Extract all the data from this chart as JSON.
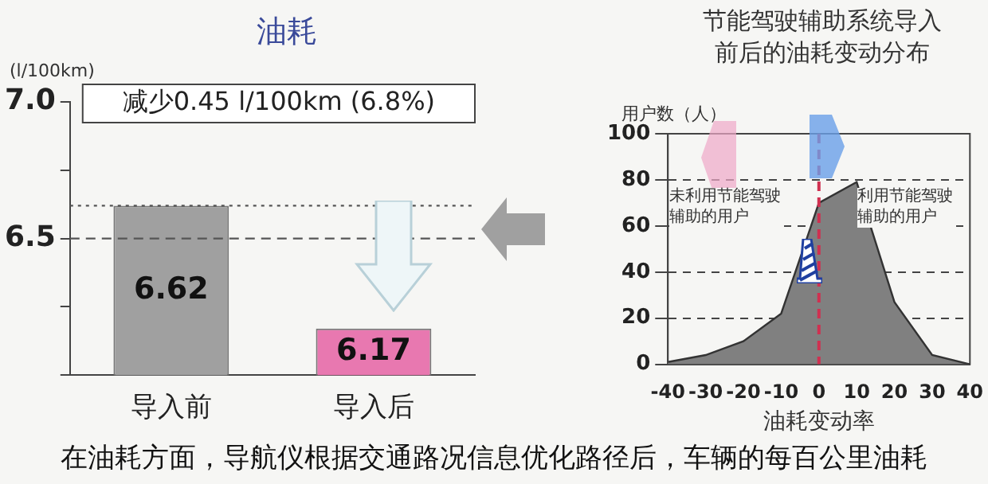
{
  "chart_data": [
    {
      "type": "bar",
      "title": "油耗",
      "ylabel": "(l/100km)",
      "categories": [
        "导入前",
        "导入后"
      ],
      "values": [
        6.62,
        6.17
      ],
      "colors": [
        "#a0a0a0",
        "#e878b0"
      ],
      "ylim": [
        6,
        7
      ],
      "yticks": [
        {
          "value": 6,
          "label": null
        },
        {
          "value": 6.25,
          "label": null
        },
        6.5,
        {
          "value": 6.75,
          "label": null
        },
        {
          "value": 7,
          "label": "7.0"
        }
      ],
      "data_labels": true,
      "ref_lines": [
        {
          "axis": "y",
          "value": 6.5,
          "color": "#555555",
          "line_style": "dashed"
        },
        {
          "axis": "y",
          "value": 6.62,
          "color": "#555555",
          "line_style": "dotted"
        }
      ],
      "annotations": [
        "减少0.45 l/100km (6.8%)",
        "在油耗方面，导航仪根据交通路况信息优化路径后，车辆的每百公里油耗"
      ]
    },
    {
      "type": "area",
      "title": "节能驾驶辅助系统导入前后的油耗变动分布",
      "ylabel": "用户数（人）",
      "xlabel": "油耗变动率",
      "x": [
        -40,
        -30,
        -20,
        -10,
        0,
        10,
        20,
        30,
        40
      ],
      "values": [
        1,
        4,
        10,
        22,
        70,
        79,
        27,
        4,
        0
      ],
      "color": "#808080",
      "xlim": [
        -40,
        40
      ],
      "xticks": [
        -40,
        -30,
        -20,
        -10,
        0,
        10,
        20,
        30,
        40
      ],
      "ylim": [
        0,
        100
      ],
      "yticks": [
        0,
        20,
        40,
        60,
        80,
        100
      ],
      "grid": "y",
      "ref_lines": [
        {
          "axis": "x",
          "value": 0,
          "color": "#d03050",
          "line_style": "dashed"
        }
      ],
      "annotations": [
        "未利用节能驾驶辅助的用户",
        "利用节能驾驶辅助的用户"
      ]
    }
  ]
}
